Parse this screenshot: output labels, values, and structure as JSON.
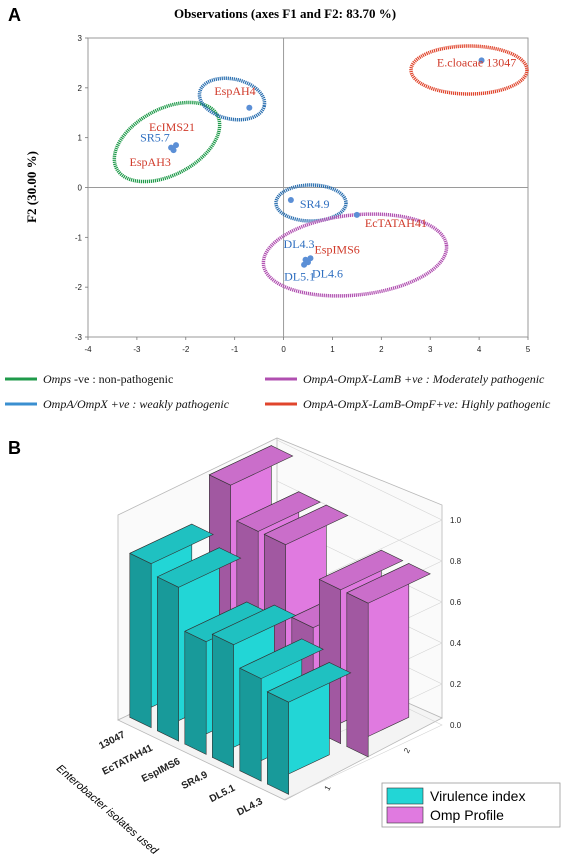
{
  "panels": {
    "a_letter": "A",
    "b_letter": "B"
  },
  "chart_data": [
    {
      "type": "scatter",
      "title": "Observations (axes F1 and F2: 83.70 %)",
      "ylabel": "F2 (30.00 %)",
      "xlabel": "",
      "xlim": [
        -4,
        5
      ],
      "ylim": [
        -3,
        3
      ],
      "xticks": [
        "-4",
        "-3",
        "-2",
        "-1",
        "0",
        "1",
        "2",
        "3",
        "4",
        "5"
      ],
      "yticks": [
        "-3",
        "-2",
        "-1",
        "0",
        "1",
        "2",
        "3"
      ],
      "point_color": "#5b8fd6",
      "points": [
        {
          "label": "E.cloacae 13047",
          "x": 4.05,
          "y": 2.55,
          "color": "#d03a2a"
        },
        {
          "label": "EspAH4",
          "x": -0.7,
          "y": 1.6,
          "color": "#d03a2a"
        },
        {
          "label": "EcIMS21",
          "x": -2.2,
          "y": 0.85,
          "color": "#d03a2a"
        },
        {
          "label": "SR5.7",
          "x": -2.3,
          "y": 0.8,
          "color": "#2f6fc0"
        },
        {
          "label": "EspAH3",
          "x": -2.25,
          "y": 0.75,
          "color": "#d03a2a"
        },
        {
          "label": "SR4.9",
          "x": 0.15,
          "y": -0.25,
          "color": "#2f6fc0"
        },
        {
          "label": "EcTATAH41",
          "x": 1.5,
          "y": -0.55,
          "color": "#d03a2a"
        },
        {
          "label": "DL4.3",
          "x": 0.45,
          "y": -1.45,
          "color": "#2f6fc0"
        },
        {
          "label": "EspIMS6",
          "x": 0.55,
          "y": -1.42,
          "color": "#d03a2a"
        },
        {
          "label": "DL4.6",
          "x": 0.5,
          "y": -1.5,
          "color": "#2f6fc0"
        },
        {
          "label": "DL5.1",
          "x": 0.42,
          "y": -1.55,
          "color": "#2f6fc0"
        }
      ],
      "groups": [
        {
          "legend_prefix": "Omps",
          "legend_rest": " -ve : non-pathogenic",
          "color": "#1f9a4a"
        },
        {
          "legend_prefix": "OmpA/OmpX",
          "legend_rest": " +ve : weakly pathogenic",
          "color": "#3a8fd0"
        },
        {
          "legend_prefix": "OmpA-OmpX-LamB",
          "legend_rest": " +ve : Moderately pathogenic",
          "color": "#b04fb0"
        },
        {
          "legend_prefix": "OmpA-OmpX-LamB-OmpF",
          "legend_rest": "+ve: Highly pathogenic",
          "color": "#e0452c"
        }
      ]
    },
    {
      "type": "bar",
      "subtype": "3d-bar",
      "categories": [
        "13047",
        "EcTATAH41",
        "EspIMS6",
        "SR4.9",
        "DL5.1",
        "DL4.3"
      ],
      "xlabel": "Enterobacter isolates used",
      "ylabel": "",
      "zlim": [
        0.0,
        1.0
      ],
      "zticks": [
        "0.0",
        "0.2",
        "0.4",
        "0.6",
        "0.8",
        "1.0"
      ],
      "depth_ticks": [
        "1",
        "2"
      ],
      "series": [
        {
          "name": "Virulence index",
          "color": "#22d6d6",
          "values": [
            0.8,
            0.75,
            0.55,
            0.6,
            0.5,
            0.45
          ]
        },
        {
          "name": "Omp Profile",
          "color": "#e07ae0",
          "values": [
            1.0,
            0.84,
            0.84,
            0.5,
            0.75,
            0.75
          ]
        }
      ]
    }
  ]
}
